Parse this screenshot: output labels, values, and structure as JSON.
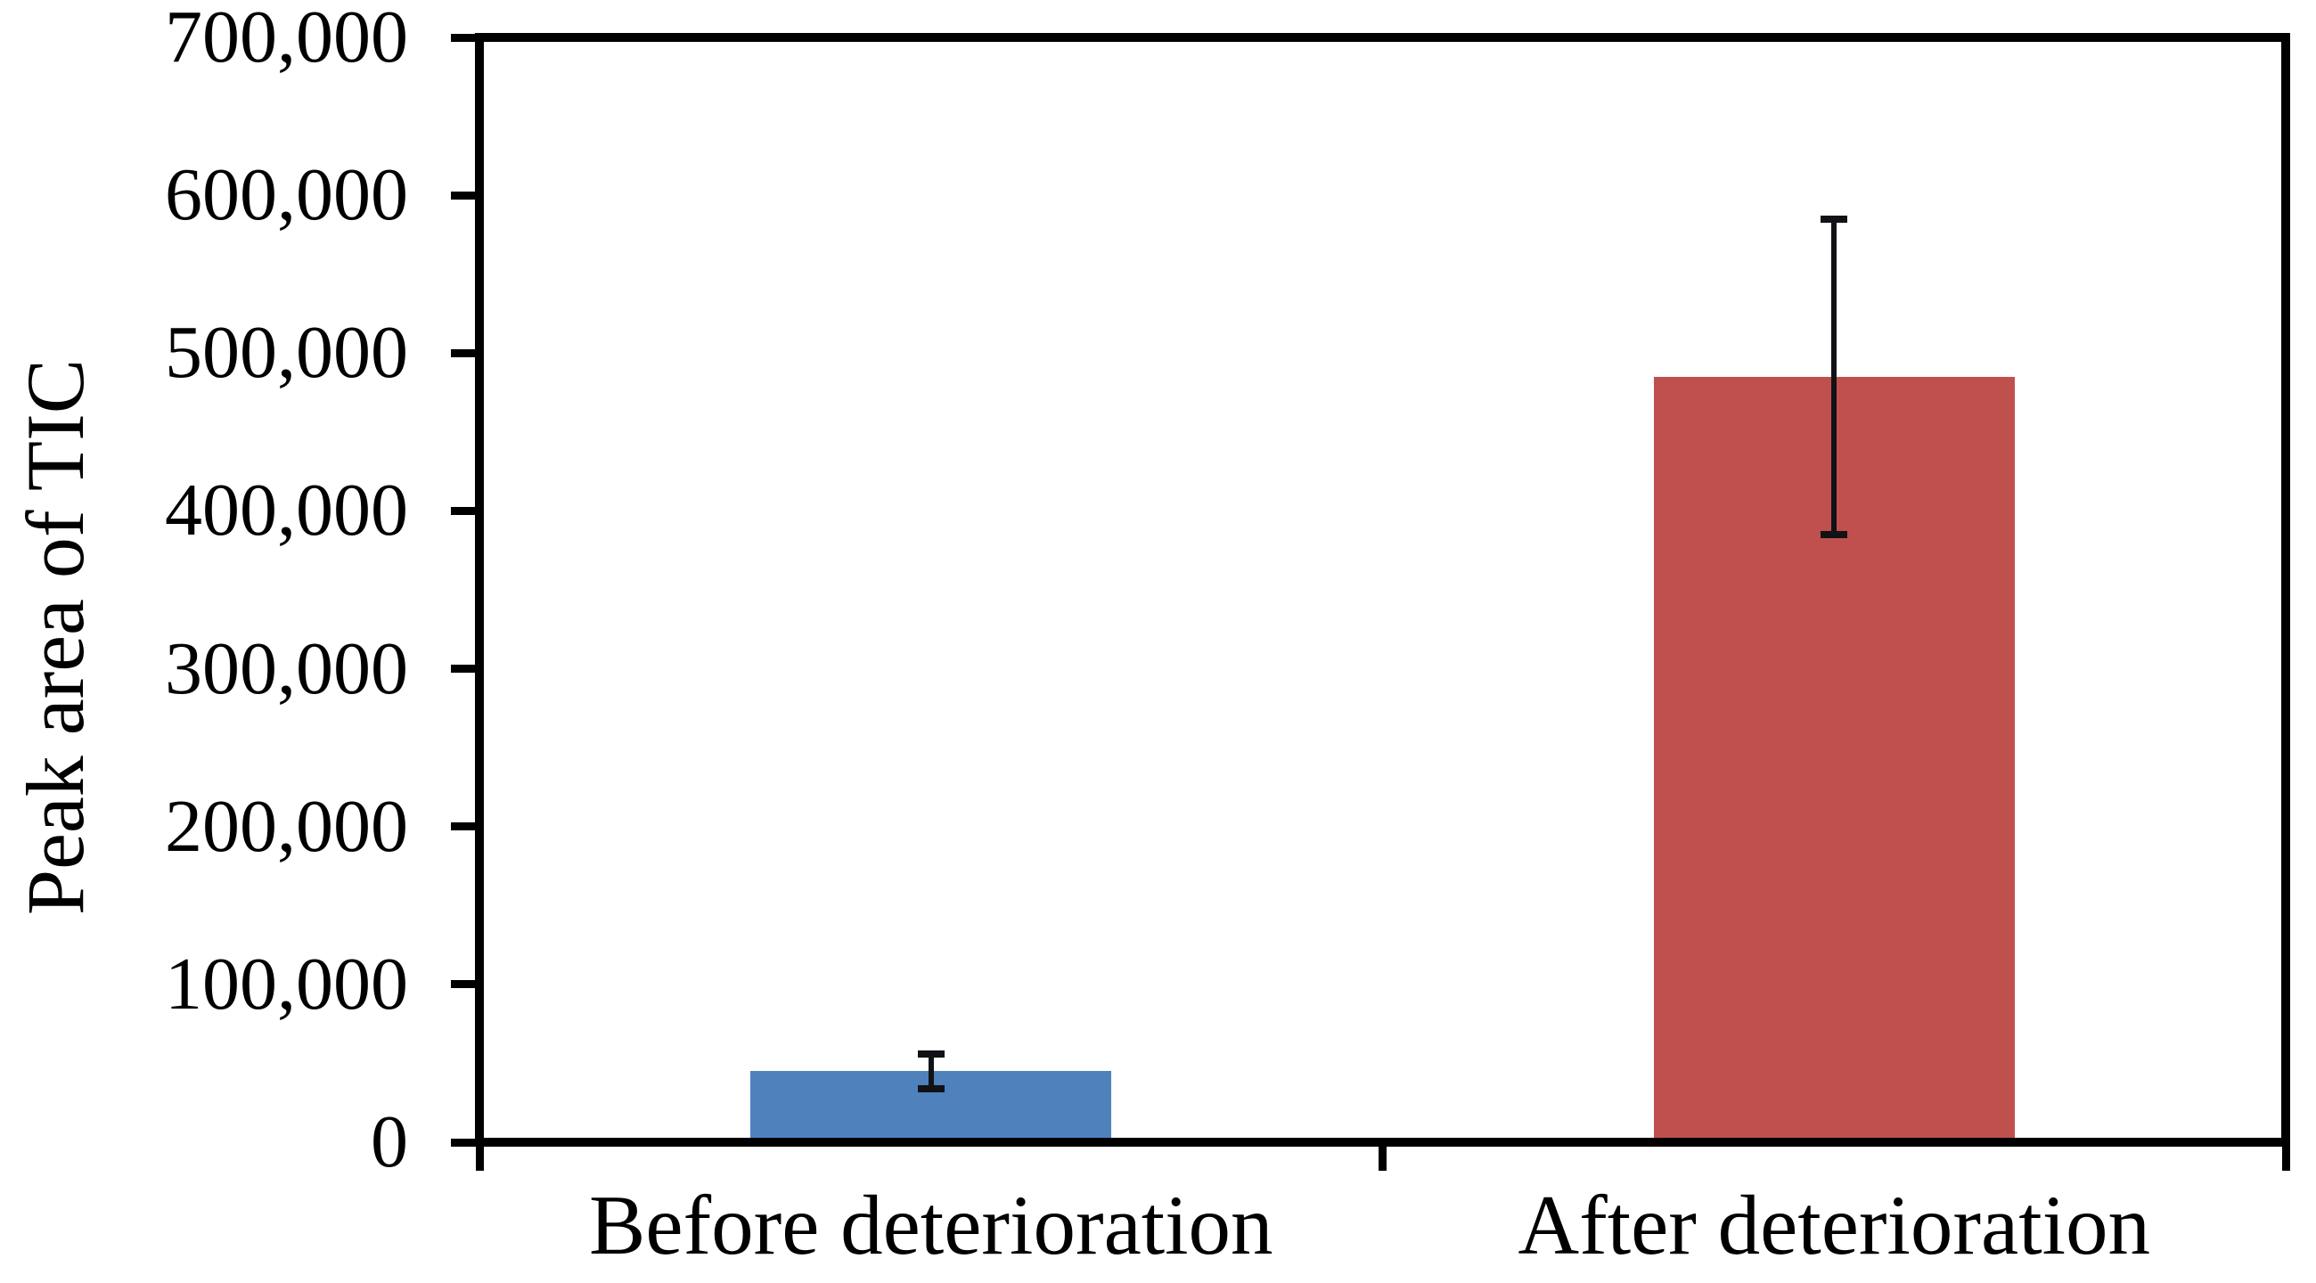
{
  "chart_data": {
    "type": "bar",
    "title": "",
    "xlabel": "",
    "ylabel": "Peak area of TIC",
    "categories": [
      "Before deterioration",
      "After deterioration"
    ],
    "values": [
      45000,
      485000
    ],
    "error_plus_minus": [
      11000,
      100000
    ],
    "bar_colors": [
      "#4f81bd",
      "#c0504d"
    ],
    "ylim": [
      0,
      700000
    ],
    "y_ticks": [
      {
        "value": 0,
        "label": "0"
      },
      {
        "value": 100000,
        "label": "100,000"
      },
      {
        "value": 200000,
        "label": "200,000"
      },
      {
        "value": 300000,
        "label": "300,000"
      },
      {
        "value": 400000,
        "label": "400,000"
      },
      {
        "value": 500000,
        "label": "500,000"
      },
      {
        "value": 600000,
        "label": "600,000"
      },
      {
        "value": 700000,
        "label": "700,000"
      }
    ],
    "grid": false,
    "legend": "none",
    "axis_color": "#000000",
    "error_bar_color": "#101216",
    "background_color": "#ffffff"
  }
}
